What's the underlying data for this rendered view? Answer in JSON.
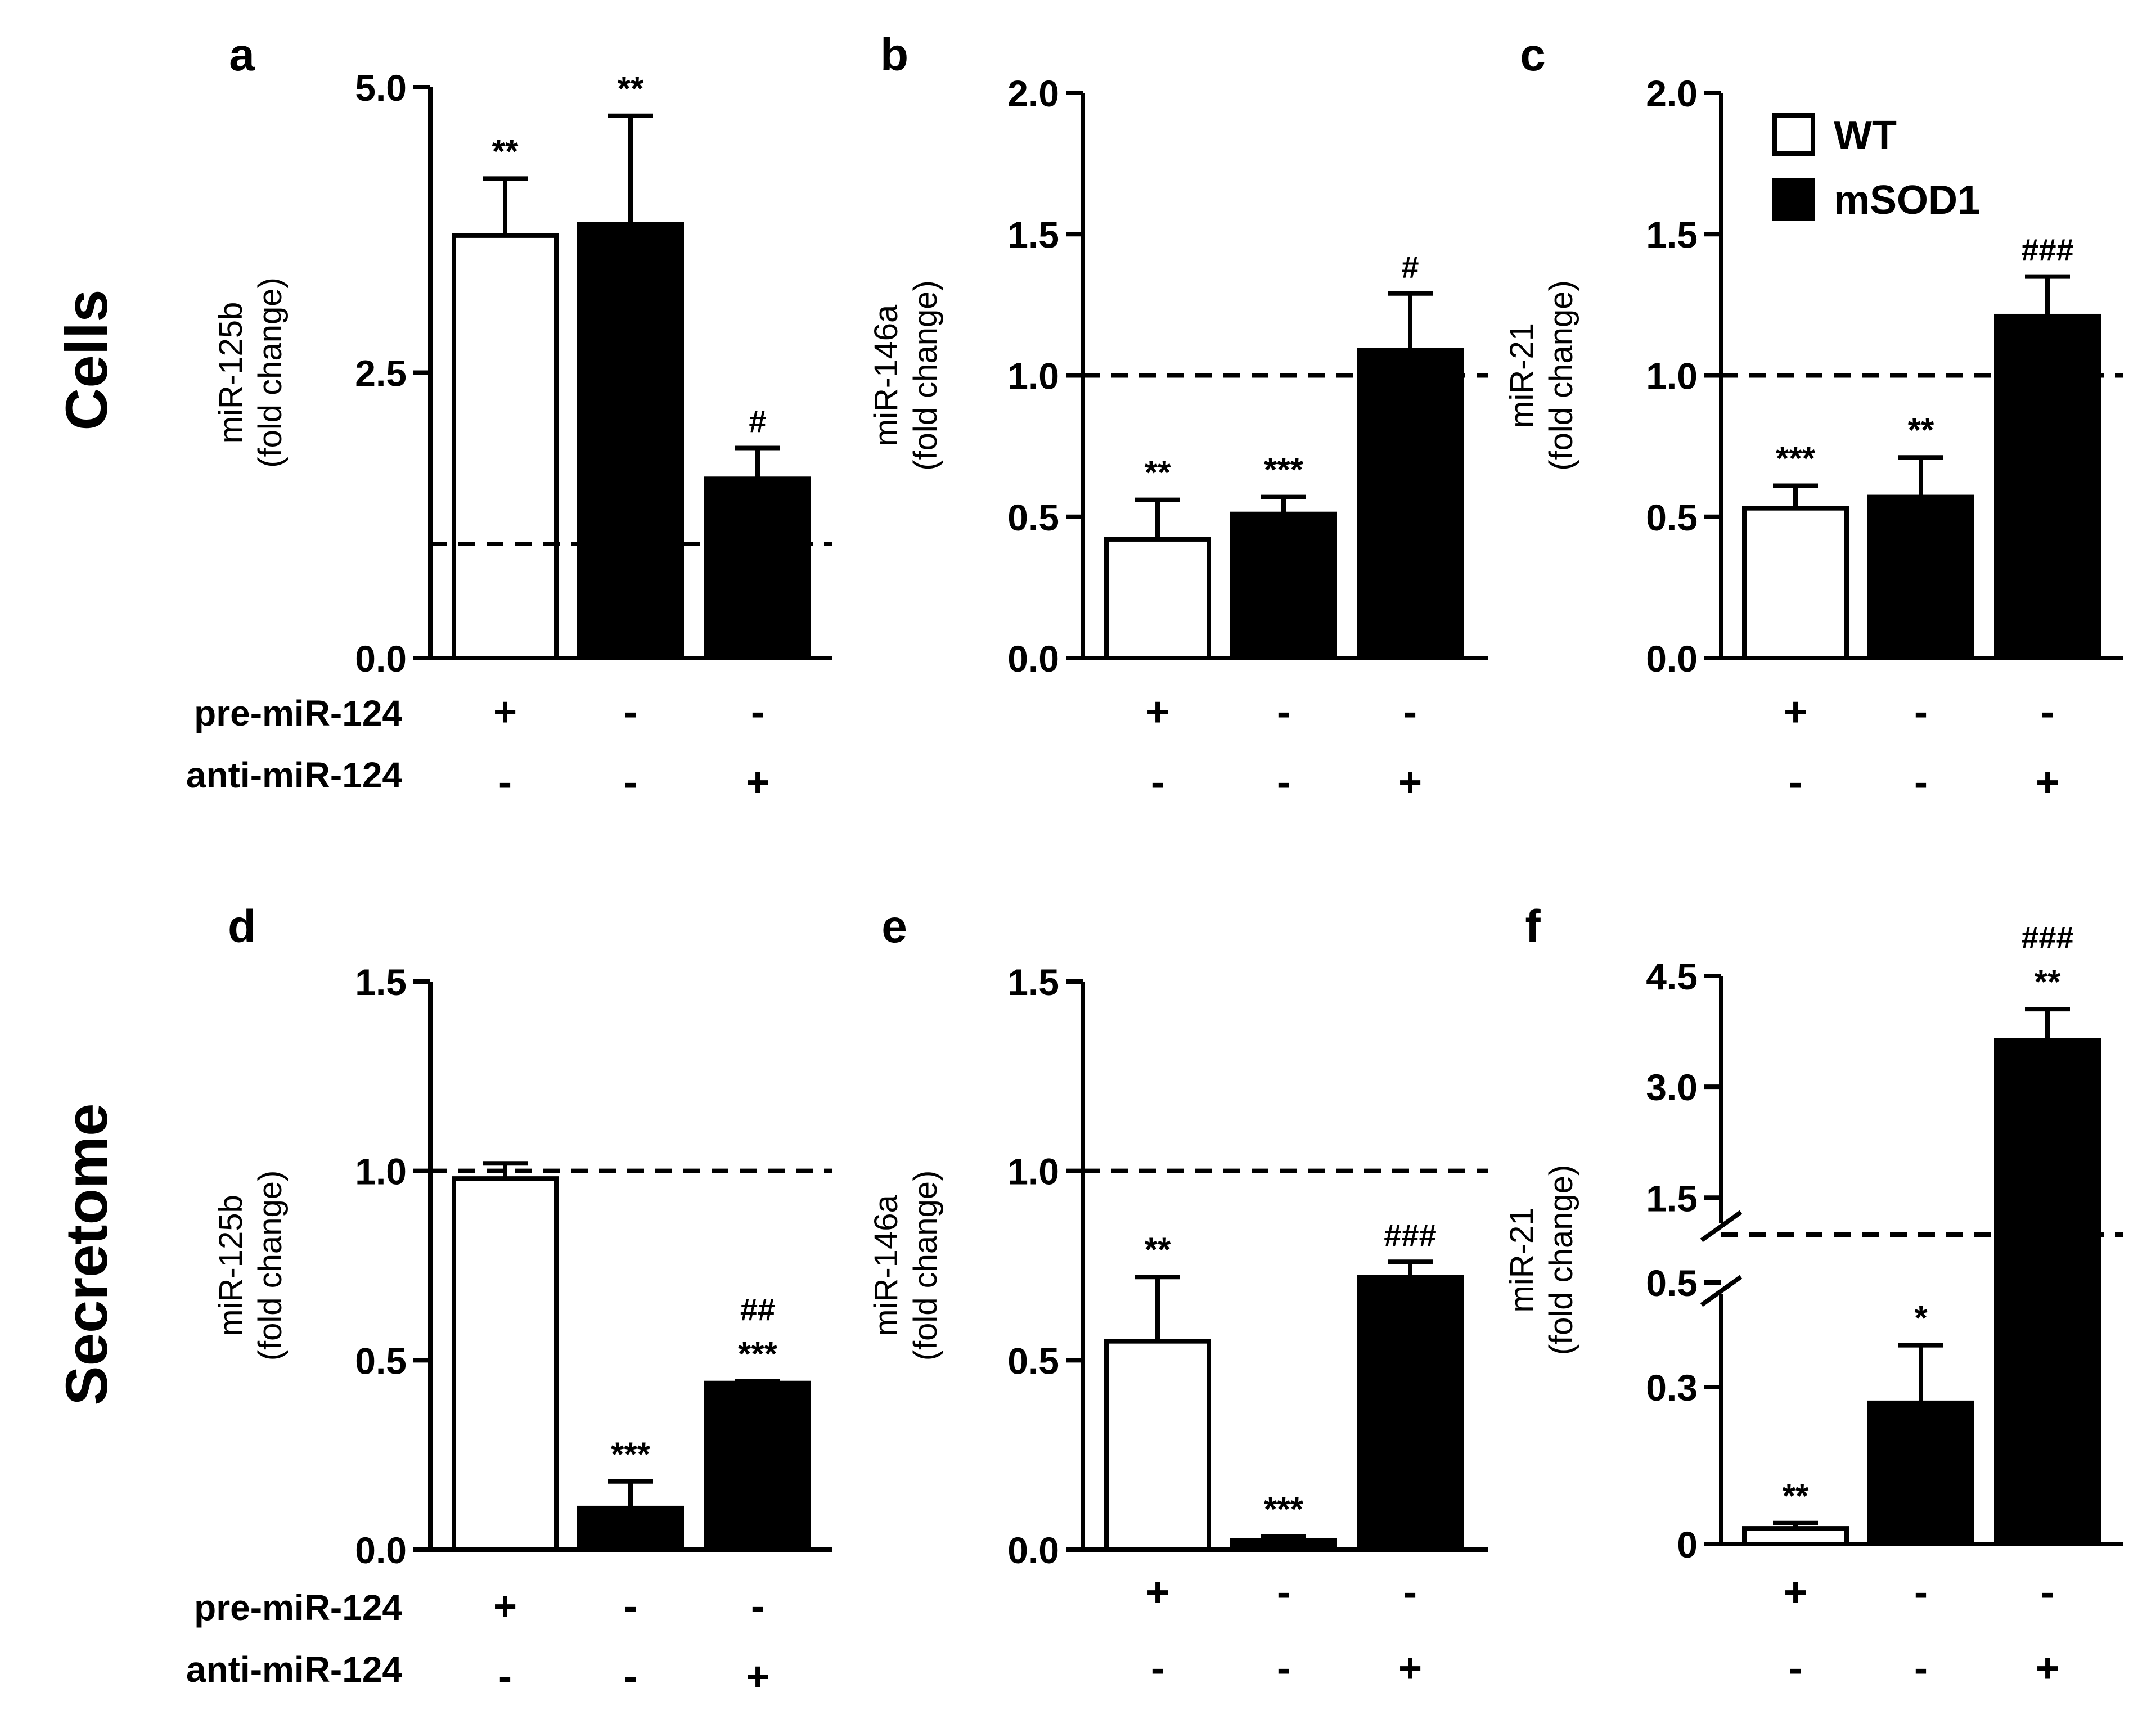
{
  "row_labels": [
    "Cells",
    "Secretome"
  ],
  "legend": {
    "items": [
      {
        "label": "WT",
        "color": "#ffffff"
      },
      {
        "label": "mSOD1",
        "color": "#000000"
      }
    ]
  },
  "treatment_rows": {
    "pre_label": "pre-miR-124",
    "anti_label": "anti-miR-124",
    "pre": [
      "+",
      "-",
      "-"
    ],
    "anti": [
      "-",
      "-",
      "+"
    ]
  },
  "chart_data": [
    {
      "panel": "a",
      "type": "bar",
      "title": "",
      "ylabel": [
        "miR-125b",
        "(fold change)"
      ],
      "ylim": [
        0,
        5
      ],
      "yticks": [
        0,
        2.5,
        5
      ],
      "ytick_labels": [
        "0.0",
        "2.5",
        "5.0"
      ],
      "reference_line": 1,
      "categories": [
        "pre-miR-124",
        "none",
        "anti-miR-124"
      ],
      "series": [
        {
          "name": "fold change",
          "values": [
            3.7,
            3.8,
            1.57
          ],
          "errors": [
            0.5,
            0.95,
            0.27
          ]
        }
      ],
      "bar_colors": [
        "#ffffff",
        "#000000",
        "#000000"
      ],
      "annotations": [
        [
          "**"
        ],
        [
          "**"
        ],
        [
          "#"
        ]
      ],
      "show_treatment_labels": true
    },
    {
      "panel": "b",
      "type": "bar",
      "title": "",
      "ylabel": [
        "miR-146a",
        "(fold change)"
      ],
      "ylim": [
        0,
        2
      ],
      "yticks": [
        0,
        0.5,
        1,
        1.5,
        2
      ],
      "ytick_labels": [
        "0.0",
        "0.5",
        "1.0",
        "1.5",
        "2.0"
      ],
      "reference_line": 1,
      "categories": [
        "pre-miR-124",
        "none",
        "anti-miR-124"
      ],
      "series": [
        {
          "name": "fold change",
          "values": [
            0.42,
            0.51,
            1.09
          ],
          "errors": [
            0.14,
            0.06,
            0.2
          ]
        }
      ],
      "bar_colors": [
        "#ffffff",
        "#000000",
        "#000000"
      ],
      "annotations": [
        [
          "**"
        ],
        [
          "***"
        ],
        [
          "#"
        ]
      ],
      "show_treatment_labels": false
    },
    {
      "panel": "c",
      "type": "bar",
      "title": "",
      "ylabel": [
        "miR-21",
        "(fold change)"
      ],
      "ylim": [
        0,
        2
      ],
      "yticks": [
        0,
        0.5,
        1,
        1.5,
        2
      ],
      "ytick_labels": [
        "0.0",
        "0.5",
        "1.0",
        "1.5",
        "2.0"
      ],
      "reference_line": 1,
      "categories": [
        "pre-miR-124",
        "none",
        "anti-miR-124"
      ],
      "series": [
        {
          "name": "fold change",
          "values": [
            0.53,
            0.57,
            1.21
          ],
          "errors": [
            0.08,
            0.14,
            0.14
          ]
        }
      ],
      "bar_colors": [
        "#ffffff",
        "#000000",
        "#000000"
      ],
      "annotations": [
        [
          "***"
        ],
        [
          "**"
        ],
        [
          "###"
        ]
      ],
      "show_treatment_labels": false,
      "legend": "top-right"
    },
    {
      "panel": "d",
      "type": "bar",
      "title": "",
      "ylabel": [
        "miR-125b",
        "(fold change)"
      ],
      "ylim": [
        0,
        1.5
      ],
      "yticks": [
        0,
        0.5,
        1,
        1.5
      ],
      "ytick_labels": [
        "0.0",
        "0.5",
        "1.0",
        "1.5"
      ],
      "reference_line": 1,
      "categories": [
        "pre-miR-124",
        "none",
        "anti-miR-124"
      ],
      "series": [
        {
          "name": "fold change",
          "values": [
            0.98,
            0.11,
            0.44
          ],
          "errors": [
            0.04,
            0.07,
            0.005
          ]
        }
      ],
      "bar_colors": [
        "#ffffff",
        "#000000",
        "#000000"
      ],
      "annotations": [
        [],
        [
          "***"
        ],
        [
          "***",
          "##"
        ]
      ],
      "show_treatment_labels": true
    },
    {
      "panel": "e",
      "type": "bar",
      "title": "",
      "ylabel": [
        "miR-146a",
        "(fold change)"
      ],
      "ylim": [
        0,
        1.5
      ],
      "yticks": [
        0,
        0.5,
        1,
        1.5
      ],
      "ytick_labels": [
        "0.0",
        "0.5",
        "1.0",
        "1.5"
      ],
      "reference_line": 1,
      "categories": [
        "pre-miR-124",
        "none",
        "anti-miR-124"
      ],
      "series": [
        {
          "name": "fold change",
          "values": [
            0.55,
            0.025,
            0.72
          ],
          "errors": [
            0.17,
            0.01,
            0.04
          ]
        }
      ],
      "bar_colors": [
        "#ffffff",
        "#000000",
        "#000000"
      ],
      "annotations": [
        [
          "**"
        ],
        [
          "***"
        ],
        [
          "###"
        ]
      ],
      "show_treatment_labels": false
    },
    {
      "panel": "f",
      "type": "bar",
      "title": "",
      "ylabel": [
        "miR-21",
        "(fold change)"
      ],
      "broken_axis": true,
      "lower_ylim": [
        0,
        0.5
      ],
      "lower_yticks": [
        0,
        0.3,
        0.5
      ],
      "lower_ytick_labels": [
        "0",
        "0.3",
        "0.5"
      ],
      "upper_ylim": [
        1.0,
        4.5
      ],
      "upper_yticks": [
        1.5,
        3.0,
        4.5
      ],
      "upper_ytick_labels": [
        "1.5",
        "3.0",
        "4.5"
      ],
      "reference_line": 1,
      "categories": [
        "pre-miR-124",
        "none",
        "anti-miR-124"
      ],
      "series": [
        {
          "name": "fold change",
          "values": [
            0.03,
            0.27,
            3.63
          ],
          "errors": [
            0.01,
            0.11,
            0.42
          ]
        }
      ],
      "bar_colors": [
        "#ffffff",
        "#000000",
        "#000000"
      ],
      "annotations": [
        [
          "**"
        ],
        [
          "*"
        ],
        [
          "**",
          "###"
        ]
      ],
      "show_treatment_labels": false
    }
  ]
}
